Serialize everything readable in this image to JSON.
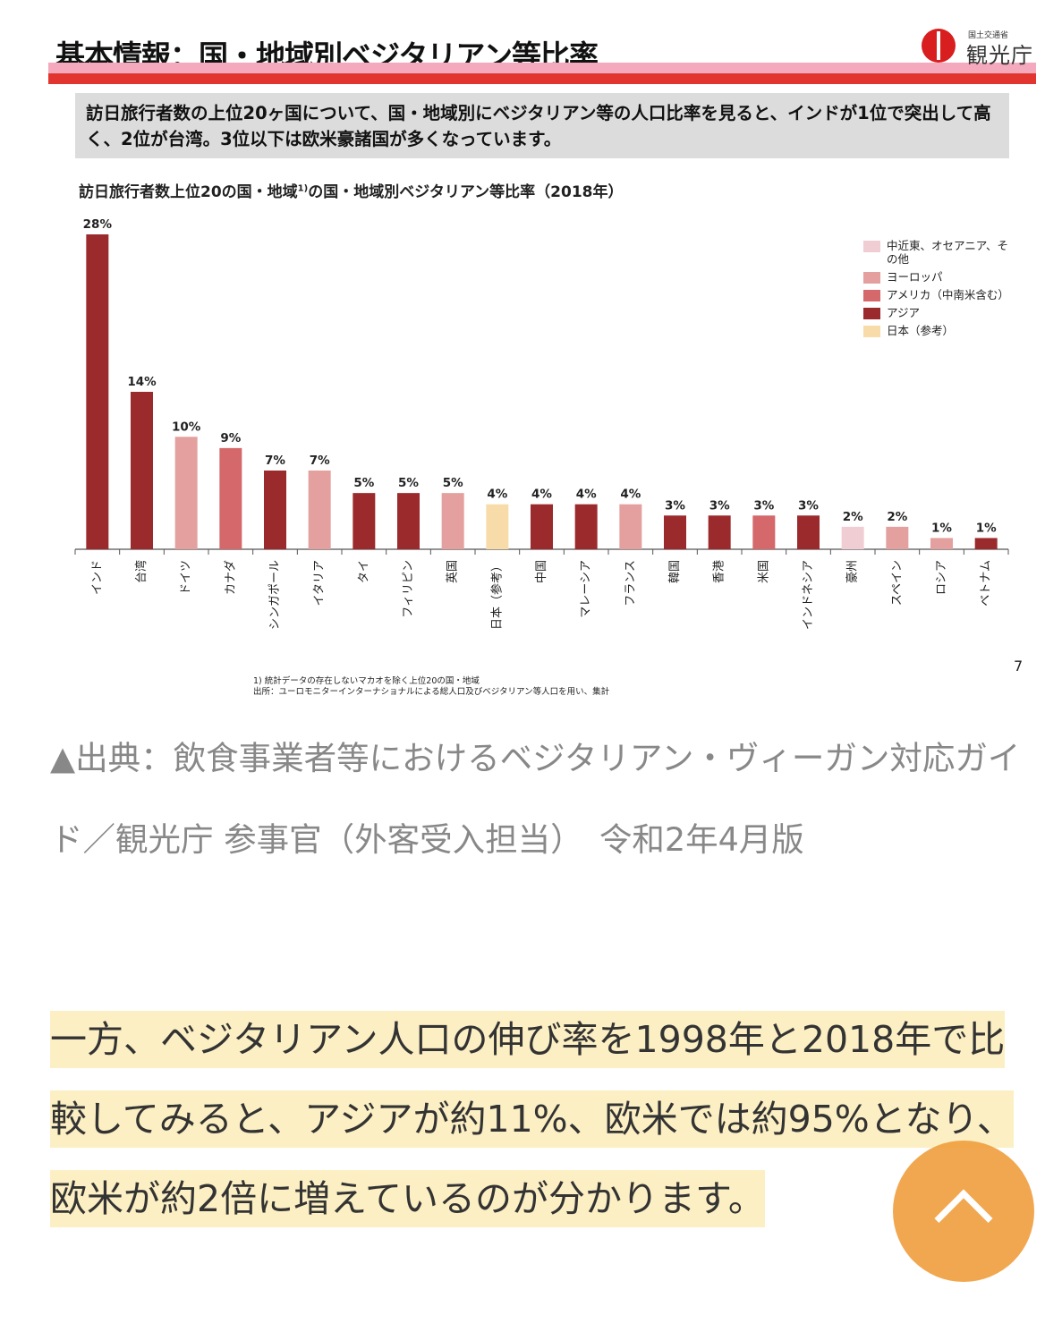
{
  "slide": {
    "title": "基本情報：国・地域別ベジタリアン等比率",
    "brand_small": "国土交通省",
    "brand_name": "観光庁",
    "summary": "訪日旅行者数の上位20ヶ国について、国・地域別にベジタリアン等の人口比率を見ると、インドが1位で突出して高く、2位が台湾。3位以下は欧米豪諸国が多くなっています。",
    "chart_title": "訪日旅行者数上位20の国・地域",
    "chart_title_sup": "1)",
    "chart_title_tail": "の国・地域別ベジタリアン等比率（2018年）",
    "footnote_1": "1) 統計データの存在しないマカオを除く上位20の国・地域",
    "footnote_2": "出所：ユーロモニターインターナショナルによる総人口及びベジタリアン等人口を用い、集計",
    "page_number": "7"
  },
  "legend": [
    {
      "label": "中近東、オセアニア、その他",
      "color": "#f0cdd3"
    },
    {
      "label": "ヨーロッパ",
      "color": "#e3a09f"
    },
    {
      "label": "アメリカ（中南米含む）",
      "color": "#d4686a"
    },
    {
      "label": "アジア",
      "color": "#9b2a2d"
    },
    {
      "label": "日本（参考）",
      "color": "#f7dcaa"
    }
  ],
  "chart_data": {
    "type": "bar",
    "title": "訪日旅行者数上位20の国・地域の国・地域別ベジタリアン等比率（2018年）",
    "categories": [
      "インド",
      "台湾",
      "ドイツ",
      "カナダ",
      "シンガポール",
      "イタリア",
      "タイ",
      "フィリピン",
      "英国",
      "日本（参考）",
      "中国",
      "マレーシア",
      "フランス",
      "韓国",
      "香港",
      "米国",
      "インドネシア",
      "豪州",
      "スペイン",
      "ロシア",
      "ベトナム"
    ],
    "values": [
      28,
      14,
      10,
      9,
      7,
      7,
      5,
      5,
      5,
      4,
      4,
      4,
      4,
      3,
      3,
      3,
      3,
      2,
      2,
      1,
      1
    ],
    "labels": [
      "28%",
      "14%",
      "10%",
      "9%",
      "7%",
      "7%",
      "5%",
      "5%",
      "5%",
      "4%",
      "4%",
      "4%",
      "4%",
      "3%",
      "3%",
      "3%",
      "3%",
      "2%",
      "2%",
      "1%",
      "1%"
    ],
    "region": [
      "アジア",
      "アジア",
      "ヨーロッパ",
      "アメリカ（中南米含む）",
      "アジア",
      "ヨーロッパ",
      "アジア",
      "アジア",
      "ヨーロッパ",
      "日本（参考）",
      "アジア",
      "アジア",
      "ヨーロッパ",
      "アジア",
      "アジア",
      "アメリカ（中南米含む）",
      "アジア",
      "中近東、オセアニア、その他",
      "ヨーロッパ",
      "ヨーロッパ",
      "アジア"
    ],
    "ylim": [
      0,
      28
    ],
    "grid": false,
    "legend_position": "top-right"
  },
  "article": {
    "source_caption": "▲出典：飲食事業者等におけるベジタリアン・ヴィーガン対応ガイド／観光庁 参事官（外客受入担当）　令和2年4月版",
    "highlight_paragraph": "一方、ベジタリアン人口の伸び率を1998年と2018年で比較してみると、アジアが約11%、欧米では約95%となり、欧米が約2倍に増えているのが分かります。"
  },
  "scroll_top": {
    "icon": "chevron-up-icon",
    "color": "#f0a040"
  }
}
